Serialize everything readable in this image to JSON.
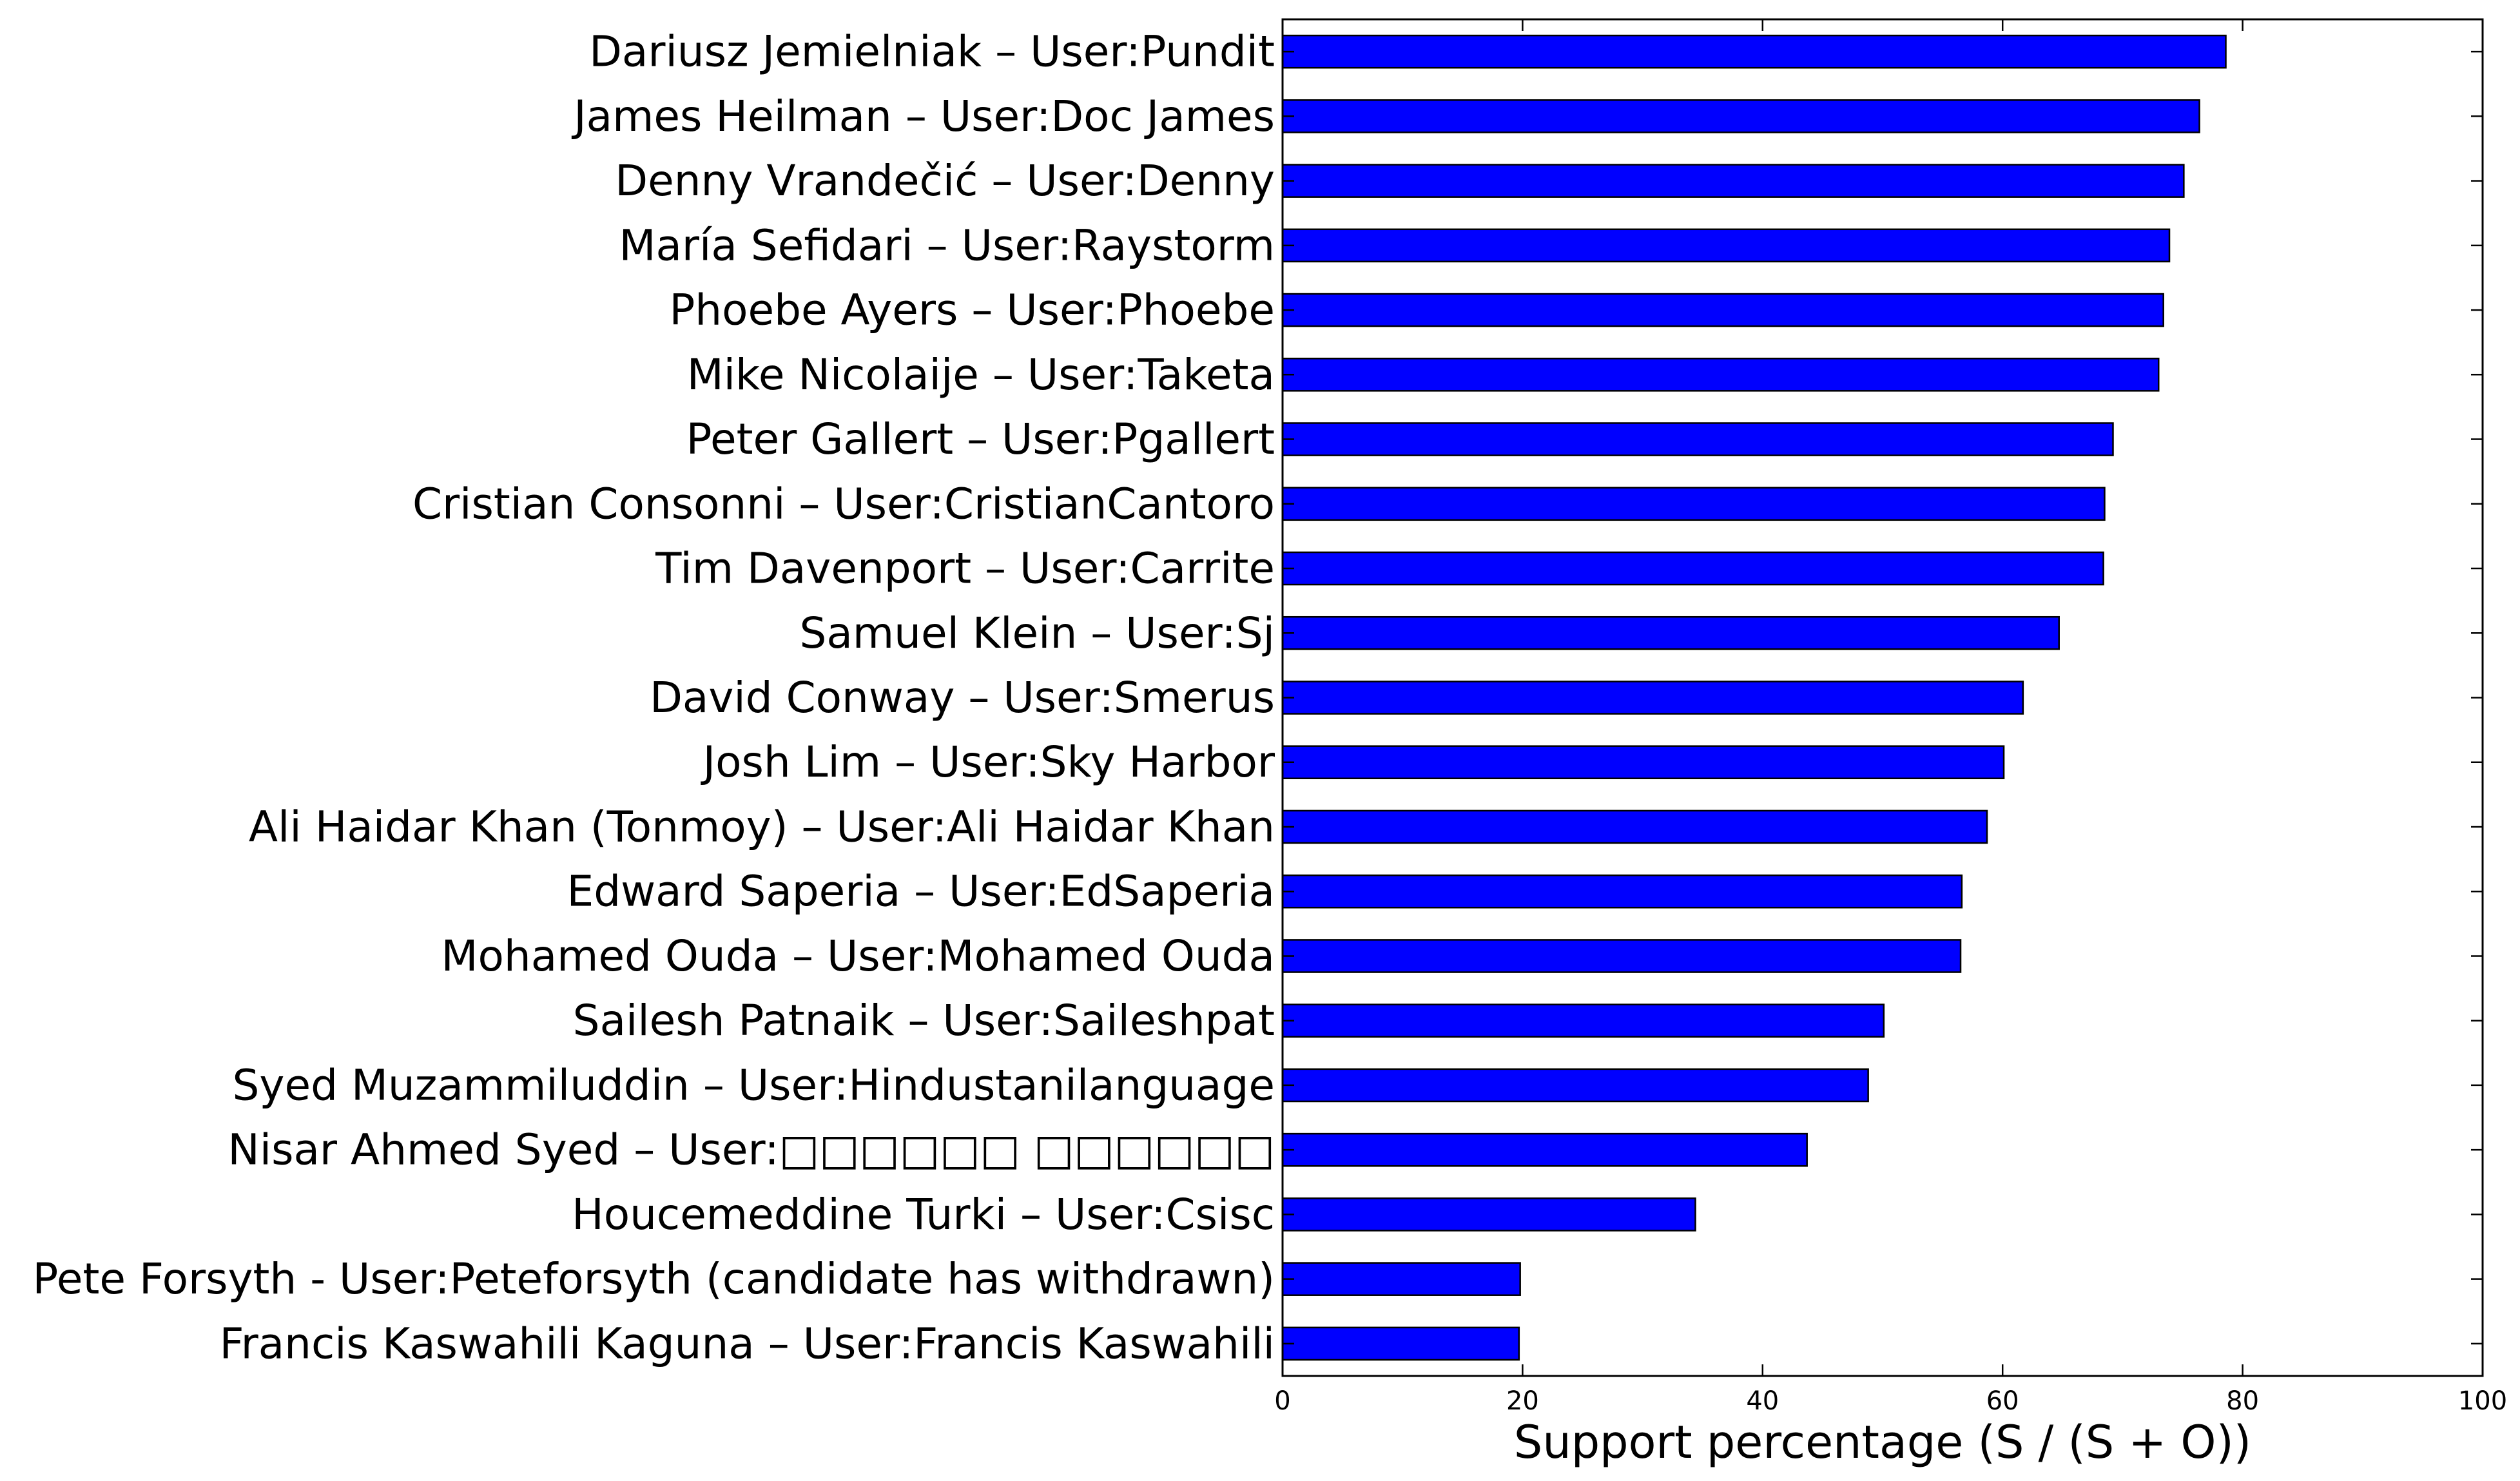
{
  "chart_data": {
    "type": "bar",
    "orientation": "horizontal",
    "title": "",
    "xlabel": "Support percentage (S / (S + O))",
    "ylabel": "",
    "xlim": [
      0,
      100
    ],
    "x_ticks": [
      0,
      20,
      40,
      60,
      80,
      100
    ],
    "grid": false,
    "legend": "none",
    "bar_color": "#0000ff",
    "edge_color": "#000000",
    "categories": [
      "Dariusz Jemielniak – User:Pundit",
      "James Heilman – User:Doc James",
      "Denny Vrandečić – User:Denny",
      "María Sefidari – User:Raystorm",
      "Phoebe Ayers – User:Phoebe",
      "Mike Nicolaije – User:Taketa",
      "Peter Gallert – User:Pgallert",
      "Cristian Consonni – User:CristianCantoro",
      "Tim Davenport – User:Carrite",
      "Samuel Klein – User:Sj",
      "David Conway – User:Smerus",
      "Josh Lim – User:Sky Harbor",
      "Ali Haidar Khan (Tonmoy) – User:Ali Haidar Khan",
      "Edward Saperia – User:EdSaperia",
      "Mohamed Ouda – User:Mohamed Ouda",
      "Sailesh Patnaik – User:Saileshpat",
      "Syed Muzammiluddin – User:Hindustanilanguage",
      "Nisar Ahmed Syed – User:□□□□□□ □□□□□□",
      "Houcemeddine Turki – User:Csisc",
      "Pete Forsyth - User:Peteforsyth (candidate has withdrawn)",
      "Francis Kaswahili Kaguna – User:Francis Kaswahili"
    ],
    "values": [
      78.6,
      76.4,
      75.1,
      73.9,
      73.4,
      73.0,
      69.2,
      68.5,
      68.4,
      64.7,
      61.7,
      60.1,
      58.7,
      56.6,
      56.5,
      50.1,
      48.8,
      43.7,
      34.4,
      19.8,
      19.7
    ]
  }
}
